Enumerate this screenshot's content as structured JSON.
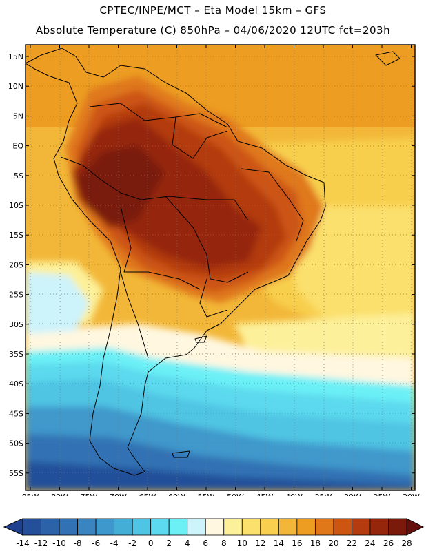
{
  "title_line1": "CPTEC/INPE/MCT –  Eta Model 15km – GFS",
  "title_line2": "Absolute Temperature (C) 850hPa – 04/06/2020 12UTC fct=203h",
  "lat_labels": [
    "15N",
    "10N",
    "5N",
    "EQ",
    "5S",
    "10S",
    "15S",
    "20S",
    "25S",
    "30S",
    "35S",
    "40S",
    "45S",
    "50S",
    "55S"
  ],
  "lon_labels": [
    "85W",
    "80W",
    "75W",
    "70W",
    "65W",
    "60W",
    "55W",
    "50W",
    "45W",
    "40W",
    "35W",
    "30W",
    "25W",
    "20W"
  ],
  "colorbar": {
    "ticks": [
      "-14",
      "-12",
      "-10",
      "-8",
      "-6",
      "-4",
      "-2",
      "0",
      "2",
      "4",
      "6",
      "8",
      "10",
      "12",
      "14",
      "16",
      "18",
      "20",
      "22",
      "24",
      "26",
      "28"
    ],
    "colors": [
      "#1f3f8f",
      "#245099",
      "#2b62a8",
      "#3272b4",
      "#3a84bf",
      "#3f98cb",
      "#45aed6",
      "#4fc4e3",
      "#5cd9ee",
      "#6cf0f6",
      "#cdf3fb",
      "#fff7e0",
      "#fdf09a",
      "#fbe06d",
      "#f8cf4e",
      "#f2b738",
      "#ec9d22",
      "#e0781a",
      "#cc5512",
      "#b33b0f",
      "#95260c",
      "#7a1a0a",
      "#640f0c"
    ]
  }
}
